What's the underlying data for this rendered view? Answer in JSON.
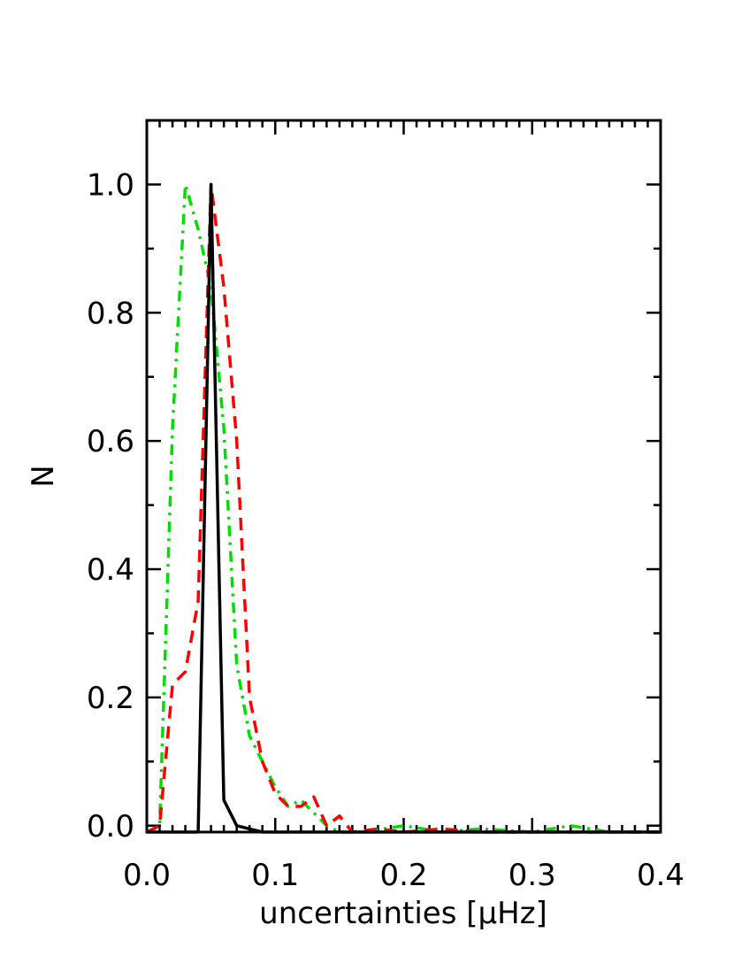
{
  "chart_data": {
    "type": "line",
    "title": "",
    "xlabel": "uncertainties [μHz]",
    "ylabel": "N",
    "xlim": [
      0.0,
      0.4
    ],
    "ylim": [
      -0.01,
      1.1
    ],
    "xticks": [
      0.0,
      0.1,
      0.2,
      0.3,
      0.4
    ],
    "xtick_labels": [
      "0.0",
      "0.1",
      "0.2",
      "0.3",
      "0.4"
    ],
    "yticks": [
      0.0,
      0.2,
      0.4,
      0.6,
      0.8,
      1.0
    ],
    "ytick_labels": [
      "0.0",
      "0.2",
      "0.4",
      "0.6",
      "0.8",
      "1.0"
    ],
    "grid": false,
    "series": [
      {
        "color": "#000000",
        "dash": "solid",
        "x": [
          0.0,
          0.01,
          0.02,
          0.03,
          0.04,
          0.05,
          0.06,
          0.07,
          0.08,
          0.09,
          0.1,
          0.12,
          0.15,
          0.2,
          0.3,
          0.4
        ],
        "y": [
          -0.01,
          -0.01,
          -0.01,
          -0.01,
          -0.01,
          1.0,
          0.04,
          0.0,
          -0.005,
          -0.01,
          -0.01,
          -0.01,
          -0.01,
          -0.01,
          -0.01,
          -0.01
        ]
      },
      {
        "color": "#ff0000",
        "dash": "dashed",
        "x": [
          0.0,
          0.01,
          0.02,
          0.03,
          0.04,
          0.05,
          0.06,
          0.07,
          0.08,
          0.09,
          0.1,
          0.11,
          0.12,
          0.13,
          0.14,
          0.15,
          0.16,
          0.18,
          0.2,
          0.23,
          0.26,
          0.3,
          0.35,
          0.4
        ],
        "y": [
          -0.01,
          0.0,
          0.22,
          0.24,
          0.35,
          1.0,
          0.84,
          0.6,
          0.2,
          0.1,
          0.05,
          0.03,
          0.03,
          0.045,
          0.0,
          0.015,
          -0.01,
          -0.005,
          -0.01,
          -0.005,
          -0.01,
          -0.01,
          -0.01,
          -0.01
        ]
      },
      {
        "color": "#00dd00",
        "dash": "dashdot",
        "x": [
          0.0,
          0.01,
          0.02,
          0.03,
          0.04,
          0.05,
          0.06,
          0.07,
          0.08,
          0.09,
          0.1,
          0.11,
          0.12,
          0.13,
          0.14,
          0.15,
          0.17,
          0.2,
          0.23,
          0.26,
          0.3,
          0.33,
          0.36,
          0.4
        ],
        "y": [
          -0.01,
          0.0,
          0.62,
          1.0,
          0.93,
          0.84,
          0.62,
          0.25,
          0.14,
          0.1,
          0.06,
          0.03,
          0.04,
          0.02,
          0.0,
          -0.01,
          -0.01,
          0.0,
          -0.01,
          -0.005,
          -0.01,
          0.0,
          -0.01,
          -0.01
        ]
      }
    ]
  }
}
